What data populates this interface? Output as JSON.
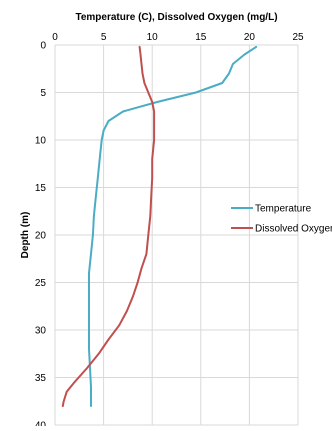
{
  "chart_data": {
    "type": "line",
    "title": "",
    "xlabel": "Temperature (C), Dissolved Oxygen (mg/L)",
    "ylabel": "Depth (m)",
    "xlim": [
      0,
      25
    ],
    "ylim": [
      0,
      40
    ],
    "y_inverted": true,
    "x_axis_position": "top",
    "x_ticks": [
      "0",
      "5",
      "10",
      "15",
      "20",
      "25"
    ],
    "y_ticks": [
      "0",
      "5",
      "10",
      "15",
      "20",
      "25",
      "30",
      "35",
      "40"
    ],
    "grid": true,
    "legend": "right",
    "series": [
      {
        "name": "Temperature",
        "color": "#4bacc6",
        "points": [
          [
            20.7,
            0.2
          ],
          [
            19.5,
            1.0
          ],
          [
            18.3,
            2.0
          ],
          [
            17.9,
            3.0
          ],
          [
            17.2,
            4.0
          ],
          [
            14.5,
            5.0
          ],
          [
            10.5,
            6.0
          ],
          [
            7.0,
            7.0
          ],
          [
            5.5,
            8.0
          ],
          [
            5.0,
            9.0
          ],
          [
            4.8,
            10.0
          ],
          [
            4.6,
            12.0
          ],
          [
            4.4,
            14.0
          ],
          [
            4.2,
            16.0
          ],
          [
            4.0,
            18.0
          ],
          [
            3.9,
            20.0
          ],
          [
            3.7,
            22.0
          ],
          [
            3.5,
            24.0
          ],
          [
            3.5,
            26.0
          ],
          [
            3.5,
            28.0
          ],
          [
            3.5,
            30.0
          ],
          [
            3.5,
            32.0
          ],
          [
            3.6,
            34.0
          ],
          [
            3.7,
            36.0
          ],
          [
            3.7,
            38.0
          ]
        ]
      },
      {
        "name": "Dissolved Oxygen",
        "color": "#c0504d",
        "points": [
          [
            8.7,
            0.2
          ],
          [
            8.8,
            1.0
          ],
          [
            8.9,
            2.0
          ],
          [
            9.0,
            3.0
          ],
          [
            9.2,
            4.0
          ],
          [
            9.6,
            5.0
          ],
          [
            10.0,
            6.0
          ],
          [
            10.2,
            7.0
          ],
          [
            10.2,
            8.0
          ],
          [
            10.2,
            9.0
          ],
          [
            10.2,
            10.0
          ],
          [
            10.0,
            12.0
          ],
          [
            10.0,
            14.0
          ],
          [
            9.9,
            16.0
          ],
          [
            9.8,
            18.0
          ],
          [
            9.6,
            20.0
          ],
          [
            9.4,
            22.0
          ],
          [
            8.9,
            23.5
          ],
          [
            8.5,
            25.0
          ],
          [
            8.0,
            26.5
          ],
          [
            7.4,
            28.0
          ],
          [
            6.6,
            29.5
          ],
          [
            5.5,
            31.0
          ],
          [
            4.5,
            32.5
          ],
          [
            3.3,
            34.0
          ],
          [
            2.0,
            35.5
          ],
          [
            1.2,
            36.5
          ],
          [
            0.9,
            37.5
          ],
          [
            0.8,
            38.0
          ]
        ]
      }
    ]
  }
}
